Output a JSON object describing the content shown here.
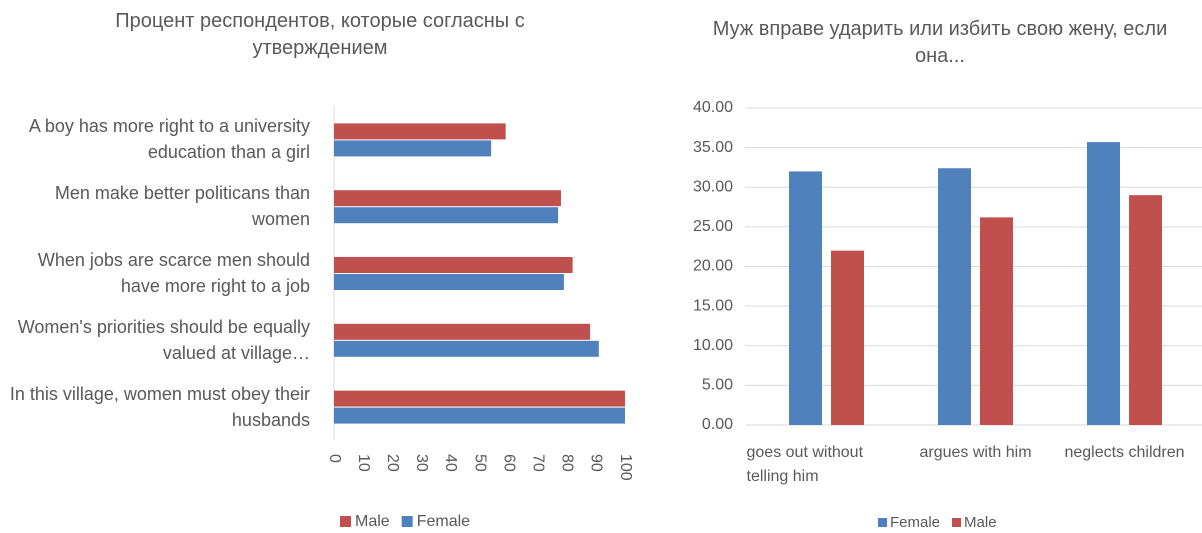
{
  "chart_data": [
    {
      "type": "hbar",
      "title": "Процент респондентов, которые согласны с утверждением",
      "categories": [
        "A boy has more right to a university education than a girl",
        "Men make better politicans than women",
        "When jobs are scarce men should have more right to a job",
        "Women's priorities should be equally valued at village…",
        "In this village, women must obey their husbands"
      ],
      "series": [
        {
          "name": "Male",
          "color": "#c0504d",
          "values": [
            59,
            78,
            82,
            88,
            100
          ]
        },
        {
          "name": "Female",
          "color": "#4f81bd",
          "values": [
            54,
            77,
            79,
            91,
            100
          ]
        }
      ],
      "xlim": [
        0,
        100
      ],
      "xticks": [
        0,
        10,
        20,
        30,
        40,
        50,
        60,
        70,
        80,
        90,
        100
      ],
      "grid": false,
      "legend": "bottom"
    },
    {
      "type": "bar",
      "title": "Муж вправе ударить или избить свою жену, если она...",
      "categories": [
        "goes out without telling him",
        "argues with him",
        "neglects children"
      ],
      "series": [
        {
          "name": "Female",
          "color": "#4f81bd",
          "values": [
            32.0,
            32.4,
            35.7
          ]
        },
        {
          "name": "Male",
          "color": "#c0504d",
          "values": [
            22.0,
            26.2,
            29.0
          ]
        }
      ],
      "ylim": [
        0,
        40
      ],
      "yticks": [
        {
          "value": 0,
          "label": "0.00"
        },
        {
          "value": 5,
          "label": "5.00"
        },
        {
          "value": 10,
          "label": "10.00"
        },
        {
          "value": 15,
          "label": "15.00"
        },
        {
          "value": 20,
          "label": "20.00"
        },
        {
          "value": 25,
          "label": "25.00"
        },
        {
          "value": 30,
          "label": "30.00"
        },
        {
          "value": 35,
          "label": "35.00"
        },
        {
          "value": 40,
          "label": "40.00"
        }
      ],
      "grid": true,
      "legend": "bottom"
    }
  ]
}
